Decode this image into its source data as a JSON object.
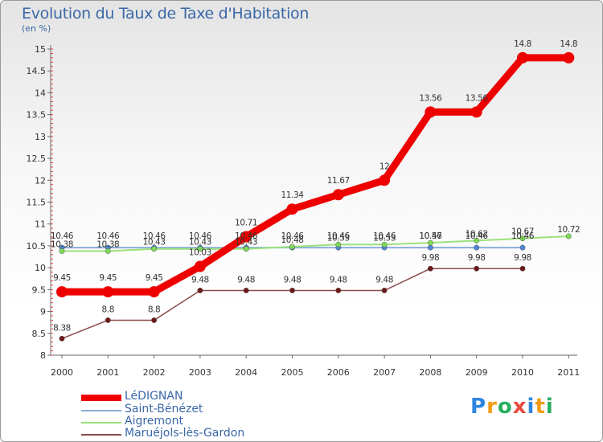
{
  "chart_data": {
    "type": "line",
    "title": "Evolution du Taux de Taxe d'Habitation",
    "ylabel": "(en %)",
    "xlabel": "",
    "ylim": [
      8,
      15
    ],
    "y_ticks": [
      "8",
      "8.5",
      "9",
      "9.5",
      "10",
      "10.5",
      "11",
      "11.5",
      "12",
      "12.5",
      "13",
      "13.5",
      "14",
      "14.5",
      "15"
    ],
    "categories": [
      "2000",
      "2001",
      "2002",
      "2003",
      "2004",
      "2005",
      "2006",
      "2007",
      "2008",
      "2009",
      "2010",
      "2011"
    ],
    "series": [
      {
        "name": "LéDIGNAN",
        "color": "#ee0000",
        "values": [
          9.45,
          9.45,
          9.45,
          10.03,
          10.71,
          11.34,
          11.67,
          12,
          13.56,
          13.56,
          14.8,
          14.8
        ],
        "labels": [
          "9.45",
          "9.45",
          "9.45",
          "10.03",
          "10.71",
          "11.34",
          "11.67",
          "12",
          "13.56",
          "13.56",
          "14.8",
          "14.8"
        ]
      },
      {
        "name": "Saint-Bénézet",
        "color": "#4f86d4",
        "values": [
          10.46,
          10.46,
          10.46,
          10.46,
          10.46,
          10.46,
          10.46,
          10.46,
          10.46,
          10.46,
          10.46,
          null
        ],
        "labels": [
          "10.46",
          "10.46",
          "10.46",
          "10.46",
          "10.46",
          "10.46",
          "10.46",
          "10.46",
          "10.46",
          "10.46",
          "10.46",
          ""
        ]
      },
      {
        "name": "Aigremont",
        "color": "#7ed957",
        "values": [
          10.38,
          10.38,
          10.43,
          10.43,
          10.43,
          10.48,
          10.53,
          10.53,
          10.57,
          10.62,
          10.67,
          10.72
        ],
        "labels": [
          "10.38",
          "10.38",
          "10.43",
          "10.43",
          "10.43",
          "10.48",
          "10.53",
          "10.53",
          "10.57",
          "10.62",
          "10.67",
          "10.72"
        ]
      },
      {
        "name": "Maruéjols-lès-Gardon",
        "color": "#7a1c1c",
        "values": [
          8.38,
          8.8,
          8.8,
          9.48,
          9.48,
          9.48,
          9.48,
          9.48,
          9.98,
          9.98,
          9.98,
          null
        ],
        "labels": [
          "8.38",
          "8.8",
          "8.8",
          "9.48",
          "9.48",
          "9.48",
          "9.48",
          "9.48",
          "9.98",
          "9.98",
          "9.98",
          ""
        ]
      }
    ],
    "legend_position": "bottom-left"
  },
  "legend": [
    {
      "name": "LéDIGNAN",
      "color": "#ee0000"
    },
    {
      "name": "Saint-Bénézet",
      "color": "#8aaed8"
    },
    {
      "name": "Aigremont",
      "color": "#9be27b"
    },
    {
      "name": "Maruéjols-lès-Gardon",
      "color": "#8a4b4b"
    }
  ],
  "logo": {
    "text": "Proxiti",
    "letters": [
      "P",
      "r",
      "o",
      "x",
      "i",
      "t",
      "i"
    ],
    "colors": [
      "#2e86de",
      "#f39c12",
      "#27ae60",
      "#e74c3c",
      "#2e86de",
      "#f39c12",
      "#27ae60"
    ]
  }
}
